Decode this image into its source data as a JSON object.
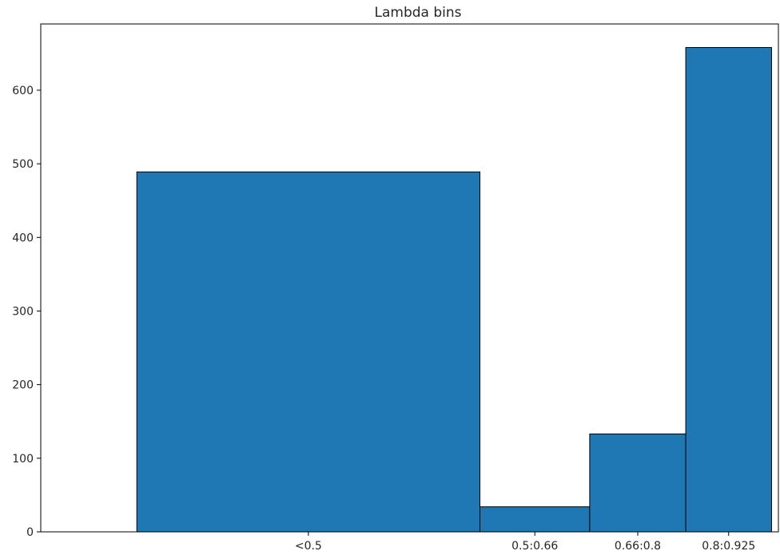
{
  "chart_data": {
    "type": "bar",
    "title": "Lambda bins",
    "xlabel": "",
    "ylabel": "",
    "bins": [
      {
        "label": "<0.5",
        "start": 0.0,
        "end": 0.5,
        "value": 489
      },
      {
        "label": "0.5:0.66",
        "start": 0.5,
        "end": 0.66,
        "value": 34
      },
      {
        "label": "0.66:0.8",
        "start": 0.66,
        "end": 0.8,
        "value": 133
      },
      {
        "label": "0.8:0.925",
        "start": 0.8,
        "end": 0.925,
        "value": 658
      }
    ],
    "xlim": [
      -0.14,
      0.935
    ],
    "ylim": [
      0,
      690
    ],
    "yticks": [
      0,
      100,
      200,
      300,
      400,
      500,
      600
    ],
    "grid": false,
    "legend": "none",
    "colors": {
      "bar_fill": "#1f77b4",
      "bar_edge": "#000000",
      "axis": "#000000",
      "text": "#262626"
    }
  }
}
